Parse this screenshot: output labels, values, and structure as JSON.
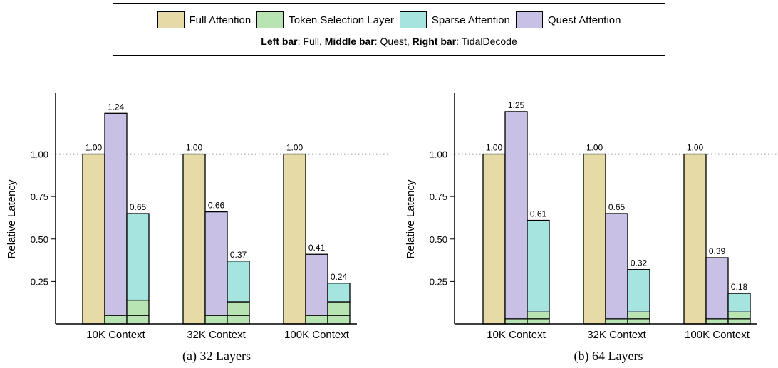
{
  "legend": {
    "items": [
      {
        "label": "Full Attention",
        "color": "#e6dba7"
      },
      {
        "label": "Token Selection Layer",
        "color": "#b8e3b3"
      },
      {
        "label": "Sparse Attention",
        "color": "#a6e5df"
      },
      {
        "label": "Quest Attention",
        "color": "#c9c0e6"
      }
    ],
    "note": {
      "left_key": "Left bar",
      "left_val": ": Full, ",
      "middle_key": "Middle bar",
      "middle_val": ": Quest, ",
      "right_key": "Right bar",
      "right_val": ": TidalDecode"
    }
  },
  "chart_data": [
    {
      "type": "bar",
      "stacked": true,
      "caption": "(a) 32 Layers",
      "ylabel": "Relative Latency",
      "ylim": [
        0,
        1.3
      ],
      "yticks": [
        "0.25",
        "0.50",
        "0.75",
        "1.00"
      ],
      "reference_line": 1.0,
      "categories": [
        "10K Context",
        "32K Context",
        "100K Context"
      ],
      "bars": [
        {
          "name": "Full",
          "totals": [
            "1.00",
            "1.00",
            "1.00"
          ],
          "stacks": [
            [
              {
                "component": "Full Attention",
                "value": 1.0
              }
            ],
            [
              {
                "component": "Full Attention",
                "value": 1.0
              }
            ],
            [
              {
                "component": "Full Attention",
                "value": 1.0
              }
            ]
          ]
        },
        {
          "name": "Quest",
          "totals": [
            "1.24",
            "0.66",
            "0.41"
          ],
          "stacks": [
            [
              {
                "component": "Token Selection Layer",
                "value": 0.05
              },
              {
                "component": "Quest Attention",
                "value": 1.19
              }
            ],
            [
              {
                "component": "Token Selection Layer",
                "value": 0.05
              },
              {
                "component": "Quest Attention",
                "value": 0.61
              }
            ],
            [
              {
                "component": "Token Selection Layer",
                "value": 0.05
              },
              {
                "component": "Quest Attention",
                "value": 0.36
              }
            ]
          ]
        },
        {
          "name": "TidalDecode",
          "totals": [
            "0.65",
            "0.37",
            "0.24"
          ],
          "stacks": [
            [
              {
                "component": "Token Selection Layer",
                "value": 0.05
              },
              {
                "component": "Token Selection Layer",
                "value": 0.09
              },
              {
                "component": "Sparse Attention",
                "value": 0.51
              }
            ],
            [
              {
                "component": "Token Selection Layer",
                "value": 0.05
              },
              {
                "component": "Token Selection Layer",
                "value": 0.08
              },
              {
                "component": "Sparse Attention",
                "value": 0.24
              }
            ],
            [
              {
                "component": "Token Selection Layer",
                "value": 0.05
              },
              {
                "component": "Token Selection Layer",
                "value": 0.08
              },
              {
                "component": "Sparse Attention",
                "value": 0.11
              }
            ]
          ]
        }
      ]
    },
    {
      "type": "bar",
      "stacked": true,
      "caption": "(b) 64 Layers",
      "ylabel": "Relative Latency",
      "ylim": [
        0,
        1.3
      ],
      "yticks": [
        "0.25",
        "0.50",
        "0.75",
        "1.00"
      ],
      "reference_line": 1.0,
      "categories": [
        "10K Context",
        "32K Context",
        "100K Context"
      ],
      "bars": [
        {
          "name": "Full",
          "totals": [
            "1.00",
            "1.00",
            "1.00"
          ],
          "stacks": [
            [
              {
                "component": "Full Attention",
                "value": 1.0
              }
            ],
            [
              {
                "component": "Full Attention",
                "value": 1.0
              }
            ],
            [
              {
                "component": "Full Attention",
                "value": 1.0
              }
            ]
          ]
        },
        {
          "name": "Quest",
          "totals": [
            "1.25",
            "0.65",
            "0.39"
          ],
          "stacks": [
            [
              {
                "component": "Token Selection Layer",
                "value": 0.03
              },
              {
                "component": "Quest Attention",
                "value": 1.22
              }
            ],
            [
              {
                "component": "Token Selection Layer",
                "value": 0.03
              },
              {
                "component": "Quest Attention",
                "value": 0.62
              }
            ],
            [
              {
                "component": "Token Selection Layer",
                "value": 0.03
              },
              {
                "component": "Quest Attention",
                "value": 0.36
              }
            ]
          ]
        },
        {
          "name": "TidalDecode",
          "totals": [
            "0.61",
            "0.32",
            "0.18"
          ],
          "stacks": [
            [
              {
                "component": "Token Selection Layer",
                "value": 0.03
              },
              {
                "component": "Token Selection Layer",
                "value": 0.04
              },
              {
                "component": "Sparse Attention",
                "value": 0.54
              }
            ],
            [
              {
                "component": "Token Selection Layer",
                "value": 0.03
              },
              {
                "component": "Token Selection Layer",
                "value": 0.04
              },
              {
                "component": "Sparse Attention",
                "value": 0.25
              }
            ],
            [
              {
                "component": "Token Selection Layer",
                "value": 0.03
              },
              {
                "component": "Token Selection Layer",
                "value": 0.04
              },
              {
                "component": "Sparse Attention",
                "value": 0.11
              }
            ]
          ]
        }
      ]
    }
  ]
}
